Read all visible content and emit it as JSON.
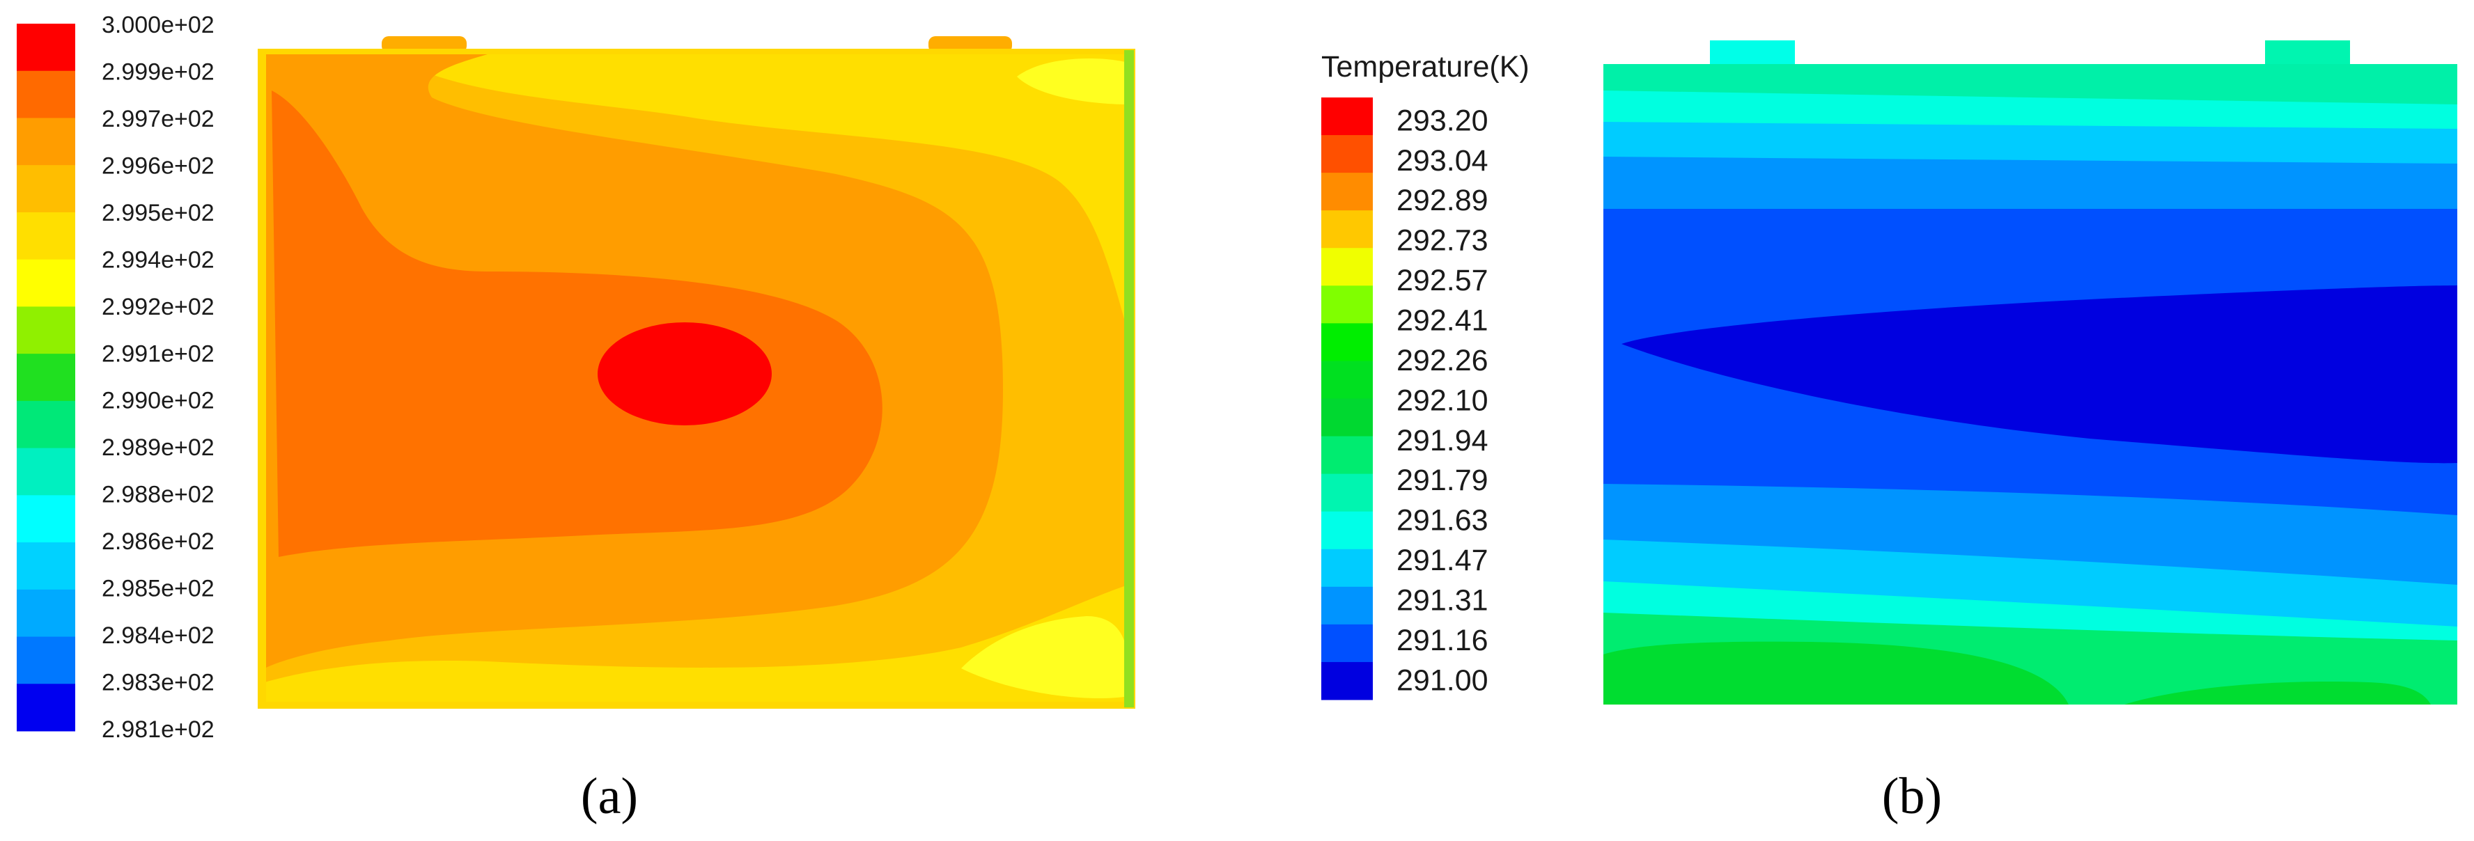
{
  "panels": [
    {
      "id": "a",
      "label": "(a)",
      "colorbar": {
        "title": "",
        "colors": [
          "#ff0000",
          "#ff6a00",
          "#ff9d00",
          "#ffbe00",
          "#ffdf00",
          "#ffff00",
          "#90f000",
          "#20e020",
          "#00e878",
          "#00f0c0",
          "#00ffff",
          "#00d2ff",
          "#00aaff",
          "#0078ff",
          "#0000f0"
        ],
        "ticks": [
          "3.000e+02",
          "2.999e+02",
          "2.997e+02",
          "2.996e+02",
          "2.995e+02",
          "2.994e+02",
          "2.992e+02",
          "2.991e+02",
          "2.990e+02",
          "2.989e+02",
          "2.988e+02",
          "2.986e+02",
          "2.985e+02",
          "2.984e+02",
          "2.983e+02",
          "2.981e+02"
        ]
      }
    },
    {
      "id": "b",
      "label": "(b)",
      "colorbar": {
        "title": "Temperature(K)",
        "colors": [
          "#ff0000",
          "#ff5000",
          "#ff8c00",
          "#ffc800",
          "#f0ff00",
          "#80ff00",
          "#00ee00",
          "#00e020",
          "#00d830",
          "#00ec70",
          "#00f5b0",
          "#00ffe8",
          "#00ccff",
          "#0094ff",
          "#0050ff",
          "#0000e0"
        ],
        "ticks": [
          "293.20",
          "293.04",
          "292.89",
          "292.73",
          "292.57",
          "292.41",
          "292.26",
          "292.10",
          "291.94",
          "291.79",
          "291.63",
          "291.47",
          "291.31",
          "291.16",
          "291.00"
        ]
      }
    }
  ]
}
